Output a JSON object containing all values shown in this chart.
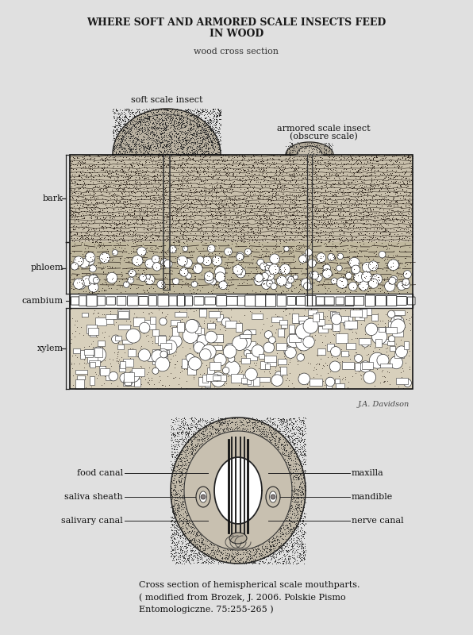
{
  "title_line1": "WHERE SOFT AND ARMORED SCALE INSECTS FEED",
  "title_line2": "IN WOOD",
  "subtitle": "wood cross section",
  "bg_color": "#e0e0e0",
  "soft_scale_label": "soft scale insect",
  "armored_label1": "armored scale insect",
  "armored_label2": "(obscure scale)",
  "bark_label": "bark",
  "phloem_label": "phloem",
  "cambium_label": "cambium",
  "xylem_label": "xylem",
  "artist_label": "J.A. Davidson",
  "mp_left_labels": [
    "food canal",
    "saliva sheath",
    "salivary canal"
  ],
  "mp_right_labels": [
    "maxilla",
    "mandible",
    "nerve canal"
  ],
  "caption1": "Cross section of hemispherical scale mouthparts.",
  "caption2": "( modified from Brozek, J. 2006. Polskie Pismo",
  "caption3": "Entomologiczne. 75:255-265 )"
}
